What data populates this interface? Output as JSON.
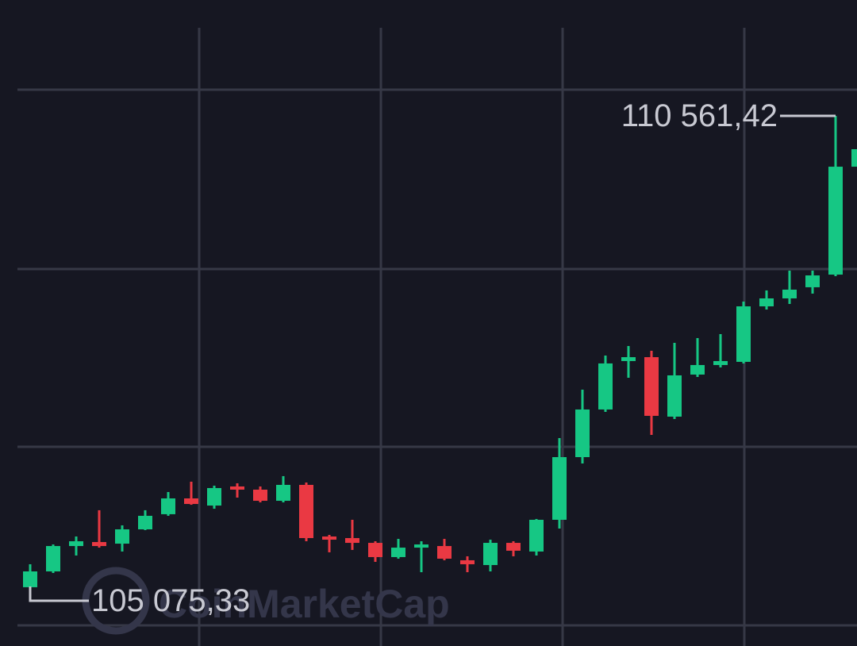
{
  "chart_data": {
    "type": "candlestick",
    "watermark": "CoinMarketCap",
    "grid": true,
    "up_color": "#16c784",
    "down_color": "#ea3943",
    "ylim": [
      104563,
      111872
    ],
    "categories": [
      null,
      null,
      null,
      null,
      null,
      null,
      null,
      null,
      null,
      null,
      null,
      null,
      null,
      null,
      null,
      null,
      null,
      null,
      null,
      null,
      null,
      null,
      null,
      null,
      null,
      null,
      null,
      null,
      null,
      null,
      null,
      null,
      null,
      null,
      null,
      null,
      null
    ],
    "open": [
      105228,
      105407,
      105694,
      105739,
      105721,
      105883,
      106054,
      106233,
      106152,
      106368,
      106332,
      106206,
      106386,
      105802,
      105784,
      105730,
      105569,
      105676,
      105694,
      105533,
      105479,
      105730,
      105632,
      105991,
      106700,
      107239,
      107787,
      107831,
      107158,
      107634,
      107742,
      107778,
      108406,
      108496,
      108622,
      108765,
      109986
    ],
    "high": [
      105488,
      105712,
      105802,
      106099,
      105928,
      106099,
      106305,
      106422,
      106377,
      106404,
      106368,
      106485,
      106413,
      105820,
      105991,
      105748,
      105775,
      105748,
      105775,
      105578,
      105766,
      105748,
      106000,
      106916,
      107463,
      107849,
      107957,
      107903,
      107993,
      108047,
      108092,
      108460,
      108586,
      108810,
      108810,
      110561.42,
      110256
    ],
    "low": [
      105075.33,
      105389,
      105587,
      105676,
      105632,
      105874,
      106036,
      106161,
      106116,
      106242,
      106188,
      106188,
      105748,
      105623,
      105650,
      105515,
      105551,
      105398,
      105533,
      105398,
      105407,
      105578,
      105587,
      105892,
      106628,
      107212,
      107598,
      106952,
      107131,
      107607,
      107715,
      107760,
      108370,
      108433,
      108550,
      108747,
      109968
    ],
    "close": [
      105407,
      105694,
      105748,
      105694,
      105883,
      106036,
      106233,
      106170,
      106350,
      106332,
      106206,
      106386,
      105784,
      105766,
      105730,
      105569,
      105676,
      105712,
      105551,
      105488,
      105730,
      105641,
      105991,
      106700,
      107239,
      107760,
      107831,
      107167,
      107625,
      107742,
      107787,
      108406,
      108496,
      108595,
      108756,
      109986,
      110184
    ],
    "annotations": [
      {
        "value": 110561.42,
        "label": "110 561,42"
      },
      {
        "value": 105075.33,
        "label": "105 075,33"
      }
    ]
  }
}
